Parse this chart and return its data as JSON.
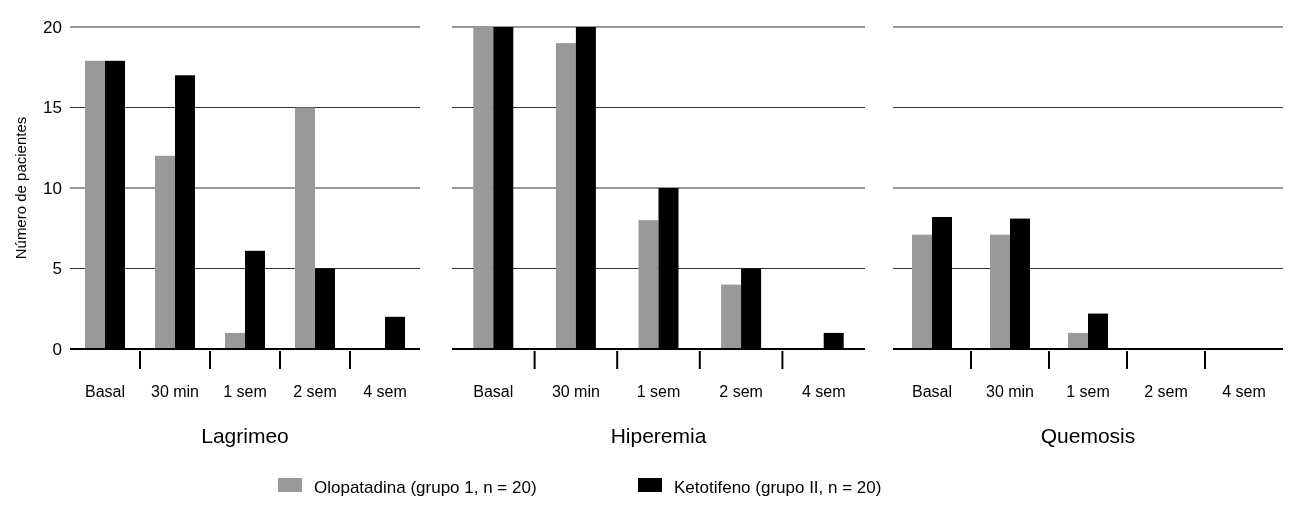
{
  "chart_data": [
    {
      "type": "bar",
      "xlabel": "Lagrimeo",
      "ylabel": "Número de pacientes",
      "categories": [
        "Basal",
        "30 min",
        "1 sem",
        "2 sem",
        "4 sem"
      ],
      "ylim": [
        0,
        20
      ],
      "yticks": [
        0,
        5,
        10,
        15,
        20
      ],
      "grid": "y",
      "legend": "bottom",
      "series": [
        {
          "name": "Olopatadina (grupo 1, n = 20)",
          "color": "#999999",
          "values": [
            17.9,
            12,
            1,
            15,
            0
          ]
        },
        {
          "name": "Ketotifeno (grupo II, n = 20)",
          "color": "#000000",
          "values": [
            17.9,
            17,
            6.1,
            5,
            2
          ]
        }
      ]
    },
    {
      "type": "bar",
      "xlabel": "Hiperemia",
      "categories": [
        "Basal",
        "30 min",
        "1 sem",
        "2 sem",
        "4 sem"
      ],
      "ylim": [
        0,
        20
      ],
      "yticks": [
        0,
        5,
        10,
        15,
        20
      ],
      "grid": "y",
      "tick_labels": "x",
      "series": [
        {
          "color": "#999999",
          "values": [
            20,
            19,
            8,
            4,
            0
          ]
        },
        {
          "color": "#000000",
          "values": [
            20,
            20,
            10,
            5,
            1
          ]
        }
      ]
    },
    {
      "type": "bar",
      "xlabel": "Quemosis",
      "categories": [
        "Basal",
        "30 min",
        "1 sem",
        "2 sem",
        "4 sem"
      ],
      "ylim": [
        0,
        20
      ],
      "yticks": [
        0,
        5,
        10,
        15,
        20
      ],
      "grid": "y",
      "tick_labels": "x",
      "series": [
        {
          "color": "#999999",
          "values": [
            7.1,
            7.1,
            1,
            0,
            0
          ]
        },
        {
          "color": "#000000",
          "values": [
            8.2,
            8.1,
            2.2,
            0,
            0
          ]
        }
      ]
    }
  ]
}
